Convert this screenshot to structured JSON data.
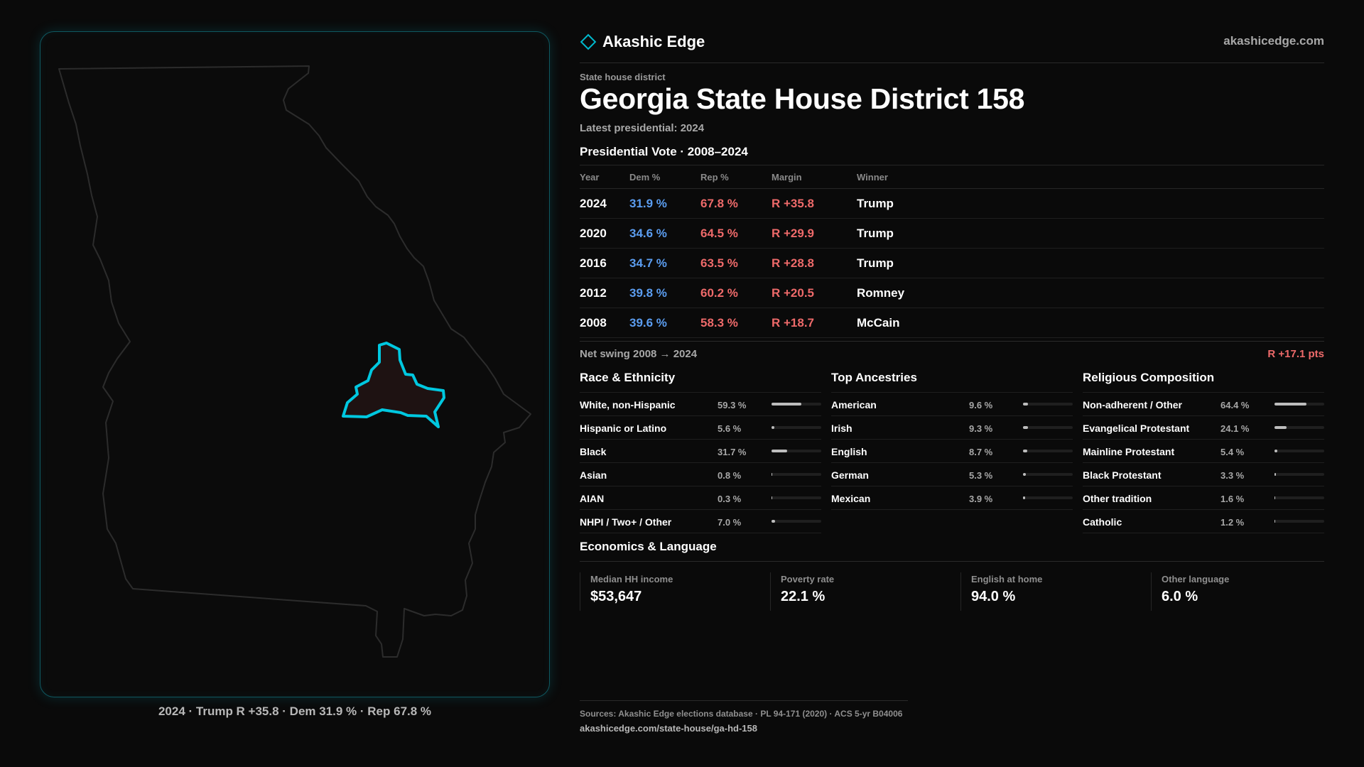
{
  "brand": {
    "name": "Akashic Edge",
    "url": "akashicedge.com",
    "accent": "#00b8cc"
  },
  "header": {
    "kicker": "State house district",
    "title": "Georgia State House District 158",
    "latest": "Latest presidential: 2024"
  },
  "vote": {
    "title": "Presidential Vote · 2008–2024",
    "columns": [
      "Year",
      "Dem %",
      "Rep %",
      "Margin",
      "Winner"
    ],
    "rows": [
      {
        "year": "2024",
        "dem": "31.9 %",
        "rep": "67.8 %",
        "margin": "R +35.8",
        "winner": "Trump"
      },
      {
        "year": "2020",
        "dem": "34.6 %",
        "rep": "64.5 %",
        "margin": "R +29.9",
        "winner": "Trump"
      },
      {
        "year": "2016",
        "dem": "34.7 %",
        "rep": "63.5 %",
        "margin": "R +28.8",
        "winner": "Trump"
      },
      {
        "year": "2012",
        "dem": "39.8 %",
        "rep": "60.2 %",
        "margin": "R +20.5",
        "winner": "Romney"
      },
      {
        "year": "2008",
        "dem": "39.6 %",
        "rep": "58.3 %",
        "margin": "R +18.7",
        "winner": "McCain"
      }
    ],
    "swing_label": "Net swing 2008 → 2024",
    "swing_value": "R +17.1 pts"
  },
  "race": {
    "title": "Race & Ethnicity",
    "rows": [
      {
        "label": "White, non-Hispanic",
        "value": "59.3 %",
        "pct": 59.3
      },
      {
        "label": "Hispanic or Latino",
        "value": "5.6 %",
        "pct": 5.6
      },
      {
        "label": "Black",
        "value": "31.7 %",
        "pct": 31.7
      },
      {
        "label": "Asian",
        "value": "0.8 %",
        "pct": 0.8
      },
      {
        "label": "AIAN",
        "value": "0.3 %",
        "pct": 0.3
      },
      {
        "label": "NHPI / Two+ / Other",
        "value": "7.0 %",
        "pct": 7.0
      }
    ]
  },
  "ancestry": {
    "title": "Top Ancestries",
    "rows": [
      {
        "label": "American",
        "value": "9.6 %",
        "pct": 9.6
      },
      {
        "label": "Irish",
        "value": "9.3 %",
        "pct": 9.3
      },
      {
        "label": "English",
        "value": "8.7 %",
        "pct": 8.7
      },
      {
        "label": "German",
        "value": "5.3 %",
        "pct": 5.3
      },
      {
        "label": "Mexican",
        "value": "3.9 %",
        "pct": 3.9
      }
    ]
  },
  "religion": {
    "title": "Religious Composition",
    "rows": [
      {
        "label": "Non-adherent / Other",
        "value": "64.4 %",
        "pct": 64.4
      },
      {
        "label": "Evangelical Protestant",
        "value": "24.1 %",
        "pct": 24.1
      },
      {
        "label": "Mainline Protestant",
        "value": "5.4 %",
        "pct": 5.4
      },
      {
        "label": "Black Protestant",
        "value": "3.3 %",
        "pct": 3.3
      },
      {
        "label": "Other tradition",
        "value": "1.6 %",
        "pct": 1.6
      },
      {
        "label": "Catholic",
        "value": "1.2 %",
        "pct": 1.2
      }
    ]
  },
  "economics": {
    "title": "Economics & Language",
    "items": [
      {
        "label": "Median HH income",
        "value": "$53,647"
      },
      {
        "label": "Poverty rate",
        "value": "22.1 %"
      },
      {
        "label": "English at home",
        "value": "94.0 %"
      },
      {
        "label": "Other language",
        "value": "6.0 %"
      }
    ]
  },
  "map": {
    "caption": "2024 · Trump R +35.8 · Dem 31.9 % · Rep 67.8 %",
    "highlight_color": "#00c8e0",
    "outline_color": "#2c2c2c"
  },
  "footer": {
    "sources": "Sources: Akashic Edge elections database · PL 94-171 (2020) · ACS 5-yr B04006",
    "url": "akashicedge.com/state-house/ga-hd-158"
  }
}
